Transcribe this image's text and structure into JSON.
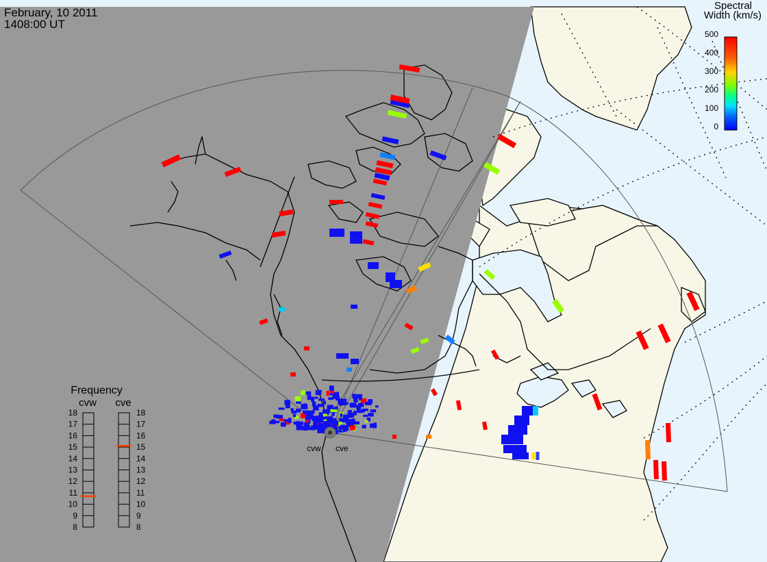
{
  "header": {
    "date": "February, 10 2011",
    "time": "1408:00 UT"
  },
  "colorbar": {
    "title_line1": "Spectral",
    "title_line2": "Width (km/s)",
    "ticks": [
      "500",
      "400",
      "300",
      "200",
      "100",
      "0"
    ],
    "colors": [
      "#ff0000",
      "#ff8000",
      "#ffd400",
      "#80ff00",
      "#00ff80",
      "#00e0ff",
      "#0060ff",
      "#0000ff"
    ]
  },
  "frequency_panel": {
    "title": "Frequency",
    "radars": [
      "cvw",
      "cve"
    ],
    "ticks": [
      "18",
      "17",
      "16",
      "15",
      "14",
      "13",
      "12",
      "11",
      "10",
      "9",
      "8"
    ],
    "cvw_value": 10.7,
    "cve_value": 15.1,
    "marker_color": "#ff4000"
  },
  "radar_sites": {
    "labels": [
      "cvw",
      "cve"
    ]
  },
  "map": {
    "colors": {
      "night": "#999999",
      "land_day": "#f8f6e6",
      "ocean_day": "#e8f4fc",
      "coast": "#000000"
    }
  }
}
